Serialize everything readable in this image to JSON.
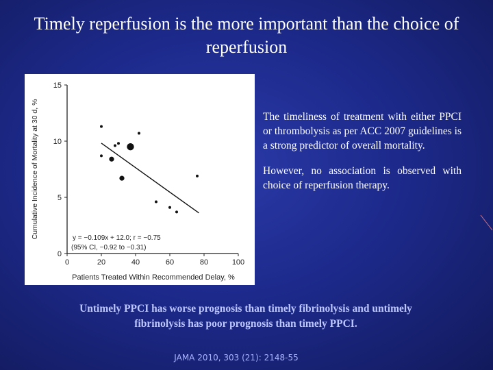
{
  "slide": {
    "title_line1": "Timely reperfusion is the more important than the choice of",
    "title_line2": "reperfusion",
    "paragraph1": "The timeliness of treatment with either PPCI or thrombolysis as per ACC 2007 guidelines is a strong predictor of overall mortality.",
    "paragraph2": "However, no association is observed with choice of reperfusion therapy.",
    "highlight_line1": "Untimely PPCI has worse prognosis than timely fibrinolysis and untimely",
    "highlight_line2": "fibrinolysis has poor prognosis than timely PPCI.",
    "citation": "JAMA 2010, 303 (21): 2148-55",
    "colors": {
      "background": "#1d2a8c",
      "highlight": "#bcc6ff",
      "citation": "#aab4ff"
    }
  },
  "chart_data": {
    "type": "scatter",
    "xlabel": "Patients Treated Within Recommended Delay, %",
    "ylabel": "Cumulative Incidence of Mortality at 30 d, %",
    "xlim": [
      0,
      100
    ],
    "ylim": [
      0,
      15
    ],
    "x_ticks": [
      "0",
      "20",
      "40",
      "60",
      "80",
      "100"
    ],
    "y_ticks": [
      "0",
      "5",
      "10",
      "15"
    ],
    "annotation_line1": "y = −0.109x + 12.0; r = −0.75",
    "annotation_line2": "(95% CI, −0.92 to −0.31)",
    "regression": {
      "slope": -0.109,
      "intercept": 12.0,
      "x_range": [
        20,
        77
      ]
    },
    "points": [
      {
        "x": 20,
        "y": 11.3,
        "size": "small"
      },
      {
        "x": 20,
        "y": 8.7,
        "size": "small"
      },
      {
        "x": 26,
        "y": 8.4,
        "size": "medium"
      },
      {
        "x": 28,
        "y": 9.6,
        "size": "small"
      },
      {
        "x": 30,
        "y": 9.8,
        "size": "small"
      },
      {
        "x": 32,
        "y": 6.7,
        "size": "medium"
      },
      {
        "x": 37,
        "y": 9.5,
        "size": "large"
      },
      {
        "x": 42,
        "y": 10.7,
        "size": "small"
      },
      {
        "x": 52,
        "y": 4.6,
        "size": "small"
      },
      {
        "x": 60,
        "y": 4.1,
        "size": "small"
      },
      {
        "x": 64,
        "y": 3.7,
        "size": "small"
      },
      {
        "x": 76,
        "y": 6.9,
        "size": "small"
      }
    ]
  }
}
